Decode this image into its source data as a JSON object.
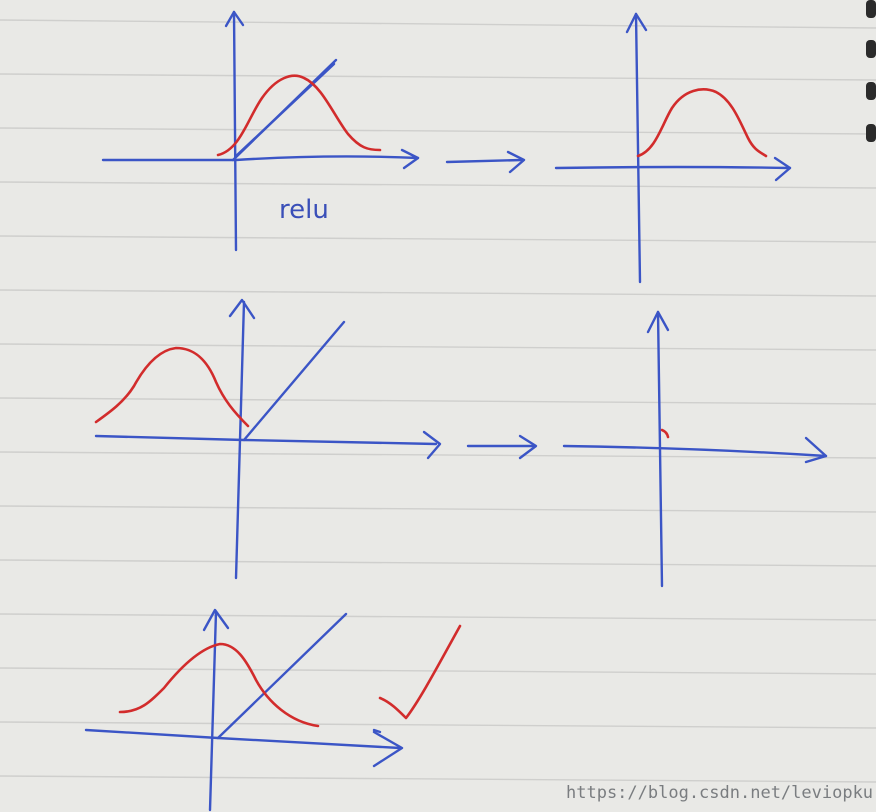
{
  "annotation": {
    "relu_label": "relu"
  },
  "watermark": {
    "text": "https://blog.csdn.net/leviopku"
  },
  "colors": {
    "paper": "#e9e9e6",
    "ink_blue": "#3b55c6",
    "ink_red": "#d22c2c",
    "rule": "#cfcfcd"
  },
  "sketches": [
    {
      "name": "relu-with-centered-gaussian",
      "output": "gaussian-shifted-positive"
    },
    {
      "name": "relu-with-negative-gaussian",
      "output": "near-zero"
    },
    {
      "name": "relu-with-gaussian-at-origin",
      "verdict": "check-mark"
    }
  ]
}
